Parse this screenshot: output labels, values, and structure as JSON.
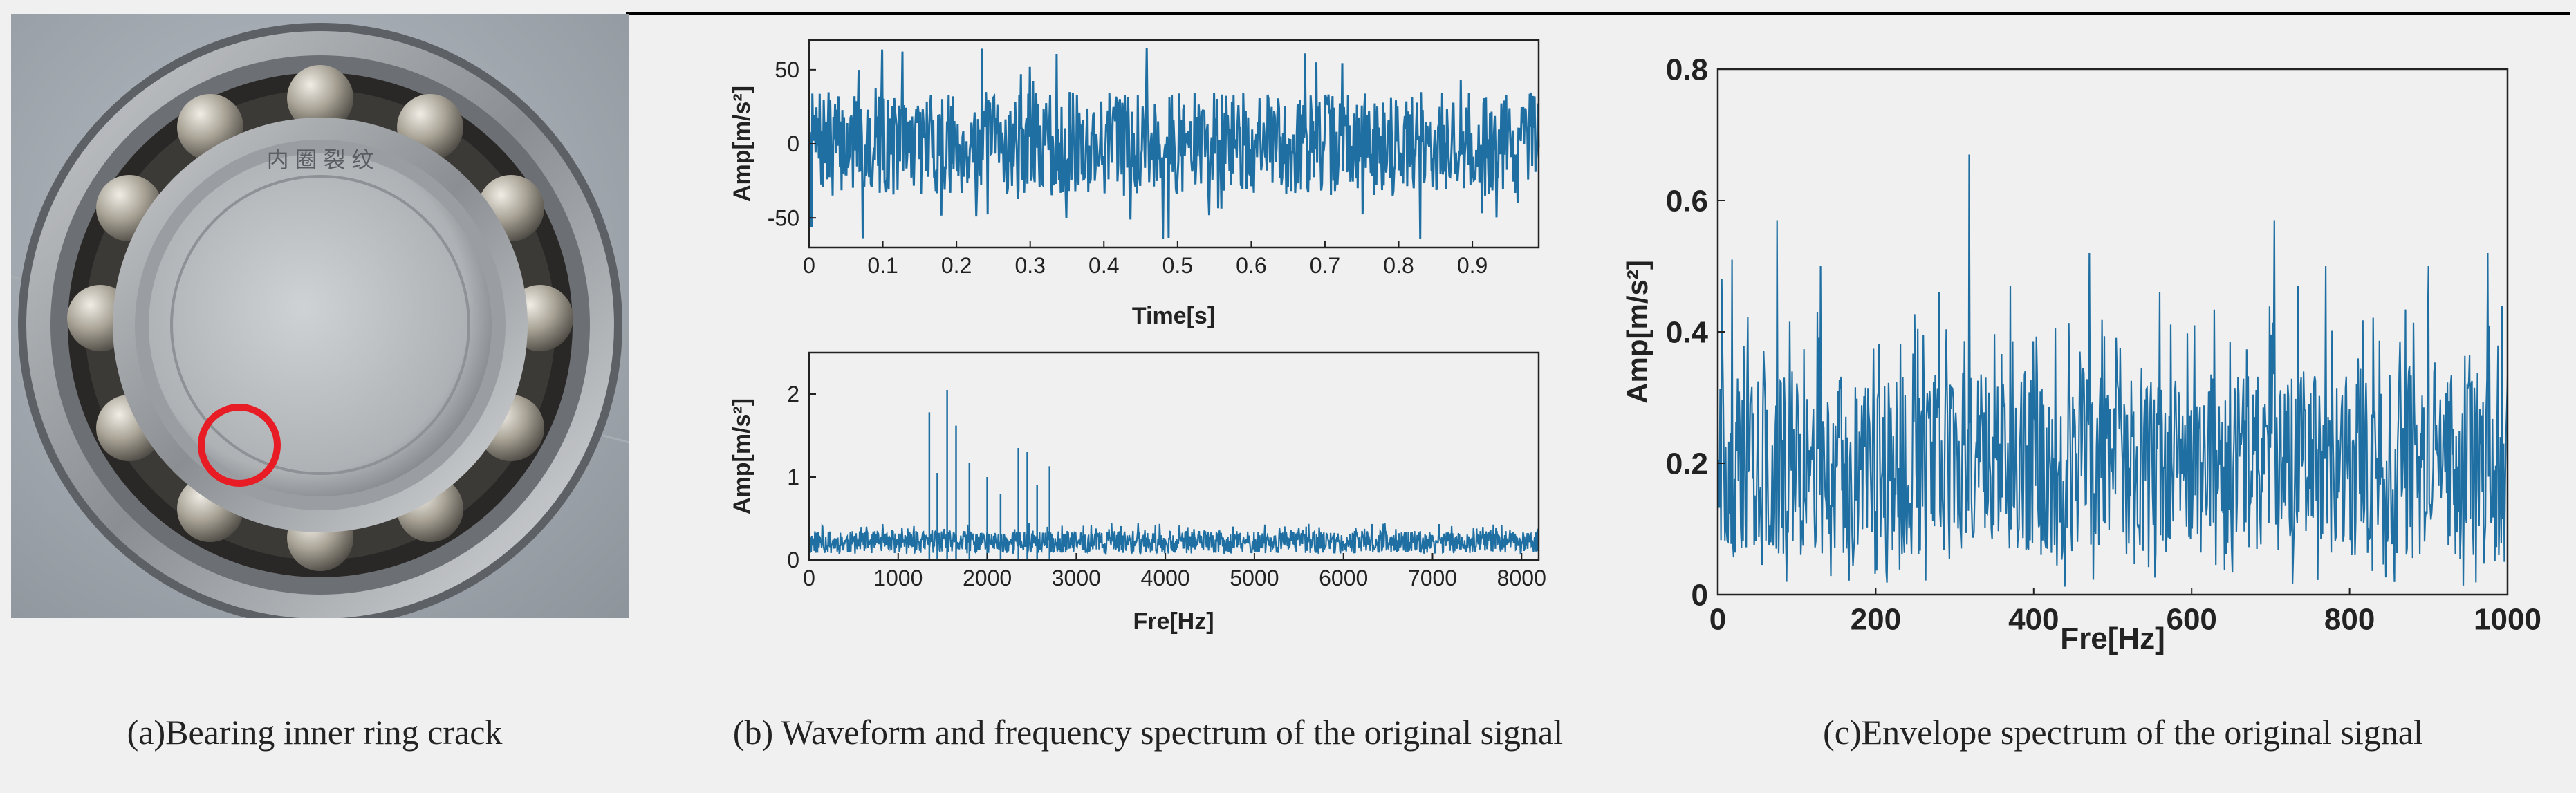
{
  "photo": {
    "label_text": "内 圈 裂 纹",
    "marker_color": "#e81c24"
  },
  "captions": {
    "a": "(a)Bearing inner ring crack",
    "b": "(b) Waveform and frequency spectrum of the original signal",
    "c": "(c)Envelope spectrum of the original signal"
  },
  "series_color": "#1f6fa3",
  "chart_data": [
    {
      "type": "line",
      "xlabel": "Time[s]",
      "ylabel": "Amp[m/s²]",
      "xlim": [
        0,
        0.99
      ],
      "ylim": [
        -70,
        70
      ],
      "xticks": [
        "0",
        "0.1",
        "0.2",
        "0.3",
        "0.4",
        "0.5",
        "0.6",
        "0.7",
        "0.8",
        "0.9"
      ],
      "xtick_values": [
        0,
        0.1,
        0.2,
        0.3,
        0.4,
        0.5,
        0.6,
        0.7,
        0.8,
        0.9
      ],
      "yticks": [
        "50",
        "0",
        "-50"
      ],
      "ytick_values": [
        50,
        0,
        -50
      ],
      "x_sampling": {
        "start": 0,
        "end": 0.99,
        "count": 900
      },
      "amplitude_band": {
        "typical": 35,
        "peak": 65
      },
      "grid": false
    },
    {
      "type": "line",
      "xlabel": "Fre[Hz]",
      "ylabel": "Amp[m/s²]",
      "xlim": [
        0,
        8192
      ],
      "ylim": [
        0,
        2.5
      ],
      "xticks": [
        "0",
        "1000",
        "2000",
        "3000",
        "4000",
        "5000",
        "6000",
        "7000",
        "8000"
      ],
      "xtick_values": [
        0,
        1000,
        2000,
        3000,
        4000,
        5000,
        6000,
        7000,
        8000
      ],
      "yticks": [
        "2",
        "1",
        "0"
      ],
      "ytick_values": [
        2,
        1,
        0
      ],
      "baseline_level": 0.25,
      "peaks": [
        {
          "x": 1350,
          "y": 1.78
        },
        {
          "x": 1440,
          "y": 1.05
        },
        {
          "x": 1550,
          "y": 2.05
        },
        {
          "x": 1650,
          "y": 1.62
        },
        {
          "x": 1800,
          "y": 1.17
        },
        {
          "x": 2000,
          "y": 1.0
        },
        {
          "x": 2150,
          "y": 0.8
        },
        {
          "x": 2350,
          "y": 1.35
        },
        {
          "x": 2450,
          "y": 1.3
        },
        {
          "x": 2560,
          "y": 0.9
        },
        {
          "x": 2700,
          "y": 1.13
        }
      ],
      "grid": false
    },
    {
      "type": "line",
      "xlabel": "Fre[Hz]",
      "ylabel": "Amp[m/s²]",
      "xlim": [
        0,
        1000
      ],
      "ylim": [
        0,
        0.8
      ],
      "xticks": [
        "0",
        "200",
        "400",
        "600",
        "800",
        "1000"
      ],
      "xtick_values": [
        0,
        200,
        400,
        600,
        800,
        1000
      ],
      "yticks": [
        "0.8",
        "0.6",
        "0.4",
        "0.2",
        "0"
      ],
      "ytick_values": [
        0.8,
        0.6,
        0.4,
        0.2,
        0
      ],
      "baseline_level": 0.2,
      "peaks": [
        {
          "x": 5,
          "y": 0.48
        },
        {
          "x": 18,
          "y": 0.51
        },
        {
          "x": 75,
          "y": 0.57
        },
        {
          "x": 130,
          "y": 0.5
        },
        {
          "x": 280,
          "y": 0.46
        },
        {
          "x": 318,
          "y": 0.67
        },
        {
          "x": 370,
          "y": 0.47
        },
        {
          "x": 470,
          "y": 0.52
        },
        {
          "x": 560,
          "y": 0.46
        },
        {
          "x": 705,
          "y": 0.57
        },
        {
          "x": 735,
          "y": 0.47
        },
        {
          "x": 770,
          "y": 0.5
        },
        {
          "x": 900,
          "y": 0.5
        },
        {
          "x": 975,
          "y": 0.52
        }
      ],
      "grid": false
    }
  ]
}
